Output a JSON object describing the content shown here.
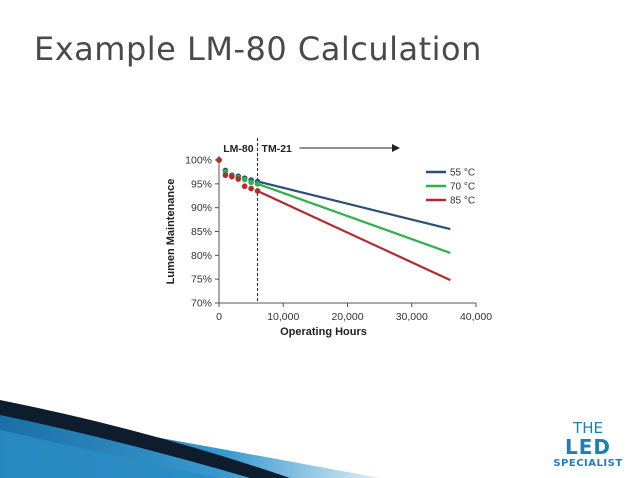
{
  "slide": {
    "title": "Example LM-80 Calculation"
  },
  "logo": {
    "line1": "THE",
    "line2": "LED",
    "line3": "SPECIALIST",
    "color": "#1e7fb8"
  },
  "chart_data": {
    "type": "line",
    "xlabel": "Operating Hours",
    "ylabel": "Lumen Maintenance",
    "xlim": [
      0,
      40000
    ],
    "ylim": [
      70,
      100
    ],
    "x_ticks": [
      0,
      10000,
      20000,
      30000,
      40000
    ],
    "x_tick_labels": [
      "0",
      "10,000",
      "20,000",
      "30,000",
      "40,000"
    ],
    "y_ticks": [
      70,
      75,
      80,
      85,
      90,
      95,
      100
    ],
    "y_tick_labels": [
      "70%",
      "75%",
      "80%",
      "85%",
      "90%",
      "95%",
      "100%"
    ],
    "grid": false,
    "legend_position": "top-right",
    "annotations": {
      "lm80_label": "LM-80",
      "tm21_label": "TM-21",
      "divider_x": 6000
    },
    "series": [
      {
        "name": "55 °C",
        "color": "#2b4f7a",
        "measured": {
          "x": [
            0,
            1000,
            2000,
            3000,
            4000,
            5000,
            6000
          ],
          "y": [
            100,
            97.8,
            96.8,
            96.6,
            96.2,
            95.8,
            95.5
          ]
        },
        "projected": {
          "x": [
            6000,
            36000
          ],
          "y": [
            95.5,
            85.5
          ]
        }
      },
      {
        "name": "70 °C",
        "color": "#2fb24c",
        "measured": {
          "x": [
            0,
            1000,
            2000,
            3000,
            4000,
            5000,
            6000
          ],
          "y": [
            100,
            97.5,
            96.6,
            96.3,
            95.9,
            95.3,
            95.0
          ]
        },
        "projected": {
          "x": [
            6000,
            36000
          ],
          "y": [
            95.0,
            80.5
          ]
        }
      },
      {
        "name": "85 °C",
        "color": "#b52a2a",
        "measured": {
          "x": [
            0,
            1000,
            2000,
            3000,
            4000,
            5000,
            6000
          ],
          "y": [
            100,
            96.8,
            96.5,
            96.0,
            94.5,
            94.0,
            93.5
          ]
        },
        "projected": {
          "x": [
            6000,
            36000
          ],
          "y": [
            93.5,
            74.8
          ]
        }
      }
    ]
  }
}
